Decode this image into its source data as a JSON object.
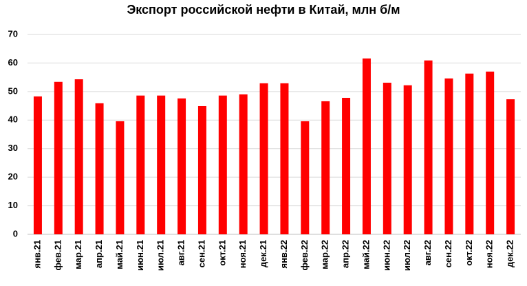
{
  "chart_data": {
    "type": "bar",
    "title": "Экспорт российской нефти в Китай, млн б/м",
    "categories": [
      "янв.21",
      "фев.21",
      "мар.21",
      "апр.21",
      "май.21",
      "июн.21",
      "июл.21",
      "авг.21",
      "сен.21",
      "окт.21",
      "ноя.21",
      "дек.21",
      "янв.22",
      "фев.22",
      "мар.22",
      "апр.22",
      "май.22",
      "июн.22",
      "июл.22",
      "авг.22",
      "сен.22",
      "окт.22",
      "ноя.22",
      "дек.22"
    ],
    "values": [
      48.3,
      53.4,
      54.3,
      45.9,
      39.6,
      48.6,
      48.6,
      47.6,
      44.9,
      48.6,
      49.0,
      52.9,
      52.9,
      39.6,
      46.6,
      47.8,
      61.6,
      53.1,
      52.2,
      60.9,
      54.6,
      56.3,
      57.0,
      47.3
    ],
    "color": "#ff0000",
    "ylim": [
      0,
      70
    ],
    "yticks": [
      0,
      10,
      20,
      30,
      40,
      50,
      60,
      70
    ],
    "grid": true
  }
}
